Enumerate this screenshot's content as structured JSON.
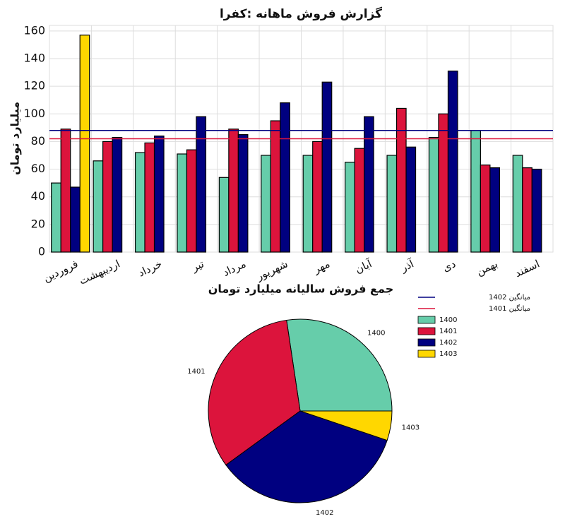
{
  "chart_data": [
    {
      "type": "bar",
      "title": "گزارش فروش ماهانه :کفرا",
      "ylabel": "میلیارد تومان",
      "categories": [
        "فروردین",
        "اردیبهشت",
        "خرداد",
        "تیر",
        "مرداد",
        "شهریور",
        "مهر",
        "آبان",
        "آذر",
        "دی",
        "بهمن",
        "اسفند"
      ],
      "series": [
        {
          "name": "1400",
          "color": "#66cdaa",
          "values": [
            50,
            66,
            72,
            71,
            54,
            70,
            70,
            65,
            70,
            83,
            88,
            70
          ]
        },
        {
          "name": "1401",
          "color": "#dc143c",
          "values": [
            89,
            80,
            79,
            74,
            89,
            95,
            80,
            75,
            104,
            100,
            63,
            61
          ]
        },
        {
          "name": "1402",
          "color": "#000080",
          "values": [
            47,
            83,
            84,
            98,
            85,
            108,
            123,
            98,
            76,
            131,
            61,
            60
          ]
        },
        {
          "name": "1403",
          "color": "#ffd700",
          "values": [
            157,
            null,
            null,
            null,
            null,
            null,
            null,
            null,
            null,
            null,
            null,
            null
          ]
        }
      ],
      "reference_lines": [
        {
          "name": "میانگین 1402",
          "value": 88,
          "color": "#000080"
        },
        {
          "name": "میانگین 1401",
          "value": 82,
          "color": "#dc143c"
        }
      ],
      "ylim": [
        0,
        164
      ],
      "yticks": [
        0,
        20,
        40,
        60,
        80,
        100,
        120,
        140,
        160
      ],
      "grid": true,
      "legend": "lower right"
    },
    {
      "type": "pie",
      "title": "جمع فروش سالیانه میلیارد تومان",
      "labels": [
        "1400",
        "1401",
        "1402",
        "1403"
      ],
      "values": [
        829,
        989,
        1054,
        157
      ],
      "colors": [
        "#66cdaa",
        "#dc143c",
        "#000080",
        "#ffd700"
      ]
    }
  ]
}
